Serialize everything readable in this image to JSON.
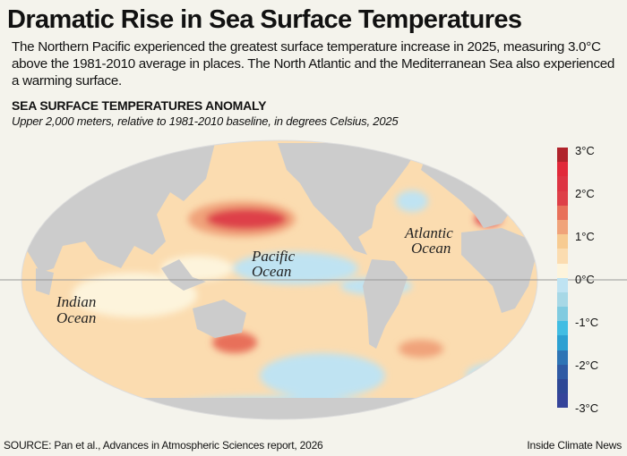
{
  "title": "Dramatic Rise in Sea Surface Temperatures",
  "intro": "The Northern Pacific experienced the greatest surface temperature increase in 2025, measuring 3.0°C above the 1981-2010 average in places. The North Atlantic and the Mediterranean Sea also experienced a warming surface.",
  "map": {
    "heading": "SEA SURFACE TEMPERATURES ANOMALY",
    "subheading": "Upper 2,000 meters, relative to 1981-2010 baseline, in degrees Celsius, 2025",
    "ocean_labels": {
      "pacific": [
        "Pacific",
        "Ocean"
      ],
      "atlantic": [
        "Atlantic",
        "Ocean"
      ],
      "indian": [
        "Indian",
        "Ocean"
      ]
    },
    "colors": {
      "land": "#cccccc",
      "background": "#f4f3ec",
      "neutral_ocean": "#fdf4dc"
    }
  },
  "legend": {
    "ticks": [
      "3°C",
      "2°C",
      "1°C",
      "0°C",
      "-1°C",
      "-2°C",
      "-3°C"
    ],
    "range": [
      -3,
      3
    ],
    "colors": [
      "#b0232b",
      "#e1293a",
      "#dd3443",
      "#de3f48",
      "#e8705a",
      "#f0a37a",
      "#f7cb92",
      "#fbdcb0",
      "#fdf4dc",
      "#bfe3f2",
      "#a7d8e6",
      "#80cbe0",
      "#41bde3",
      "#2ca0d2",
      "#2e74b5",
      "#2f5aa4",
      "#2e4896",
      "#35449a"
    ]
  },
  "source": "SOURCE: Pan et al., Advances in Atmospheric Sciences report, 2026",
  "credit": "Inside Climate News"
}
